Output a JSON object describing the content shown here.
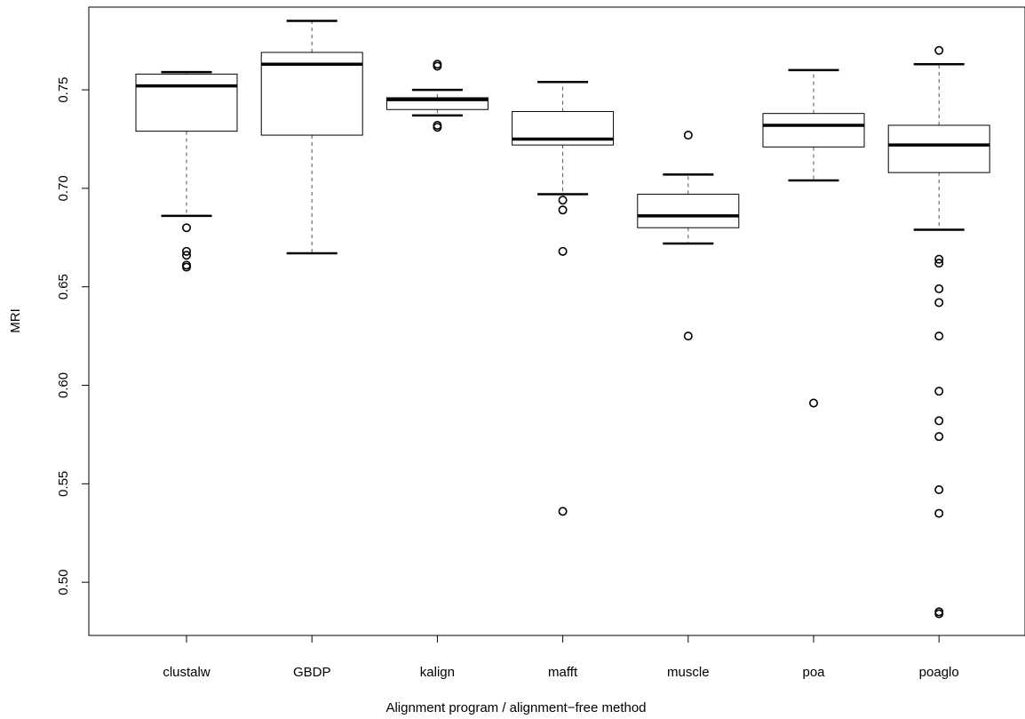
{
  "chart_data": {
    "type": "boxplot",
    "title": "",
    "xlabel": "Alignment program / alignment−free method",
    "ylabel": "MRI",
    "ylim": [
      0.473,
      0.792
    ],
    "y_ticks": [
      0.5,
      0.55,
      0.6,
      0.65,
      0.7,
      0.75
    ],
    "y_tick_labels": [
      "0.50",
      "0.55",
      "0.60",
      "0.65",
      "0.70",
      "0.75"
    ],
    "grid": false,
    "categories": [
      "clustalw",
      "GBDP",
      "kalign",
      "mafft",
      "muscle",
      "poa",
      "poaglo"
    ],
    "boxes": [
      {
        "name": "clustalw",
        "whisker_low": 0.686,
        "q1": 0.729,
        "median": 0.752,
        "q3": 0.758,
        "whisker_high": 0.759,
        "outliers": [
          0.68,
          0.668,
          0.666,
          0.661,
          0.66
        ]
      },
      {
        "name": "GBDP",
        "whisker_low": 0.667,
        "q1": 0.727,
        "median": 0.763,
        "q3": 0.769,
        "whisker_high": 0.785,
        "outliers": []
      },
      {
        "name": "kalign",
        "whisker_low": 0.737,
        "q1": 0.74,
        "median": 0.745,
        "q3": 0.746,
        "whisker_high": 0.75,
        "outliers": [
          0.763,
          0.762,
          0.732,
          0.731
        ]
      },
      {
        "name": "mafft",
        "whisker_low": 0.697,
        "q1": 0.722,
        "median": 0.725,
        "q3": 0.739,
        "whisker_high": 0.754,
        "outliers": [
          0.694,
          0.689,
          0.668,
          0.536
        ]
      },
      {
        "name": "muscle",
        "whisker_low": 0.672,
        "q1": 0.68,
        "median": 0.686,
        "q3": 0.697,
        "whisker_high": 0.707,
        "outliers": [
          0.727,
          0.625
        ]
      },
      {
        "name": "poa",
        "whisker_low": 0.704,
        "q1": 0.721,
        "median": 0.732,
        "q3": 0.738,
        "whisker_high": 0.76,
        "outliers": [
          0.591
        ]
      },
      {
        "name": "poaglo",
        "whisker_low": 0.679,
        "q1": 0.708,
        "median": 0.722,
        "q3": 0.732,
        "whisker_high": 0.763,
        "outliers": [
          0.77,
          0.664,
          0.662,
          0.649,
          0.642,
          0.625,
          0.597,
          0.582,
          0.574,
          0.547,
          0.535,
          0.485,
          0.484
        ]
      }
    ],
    "colors": {
      "box_stroke": "#000000",
      "median": "#000000",
      "whisker": "#555555",
      "background": "#ffffff"
    }
  }
}
